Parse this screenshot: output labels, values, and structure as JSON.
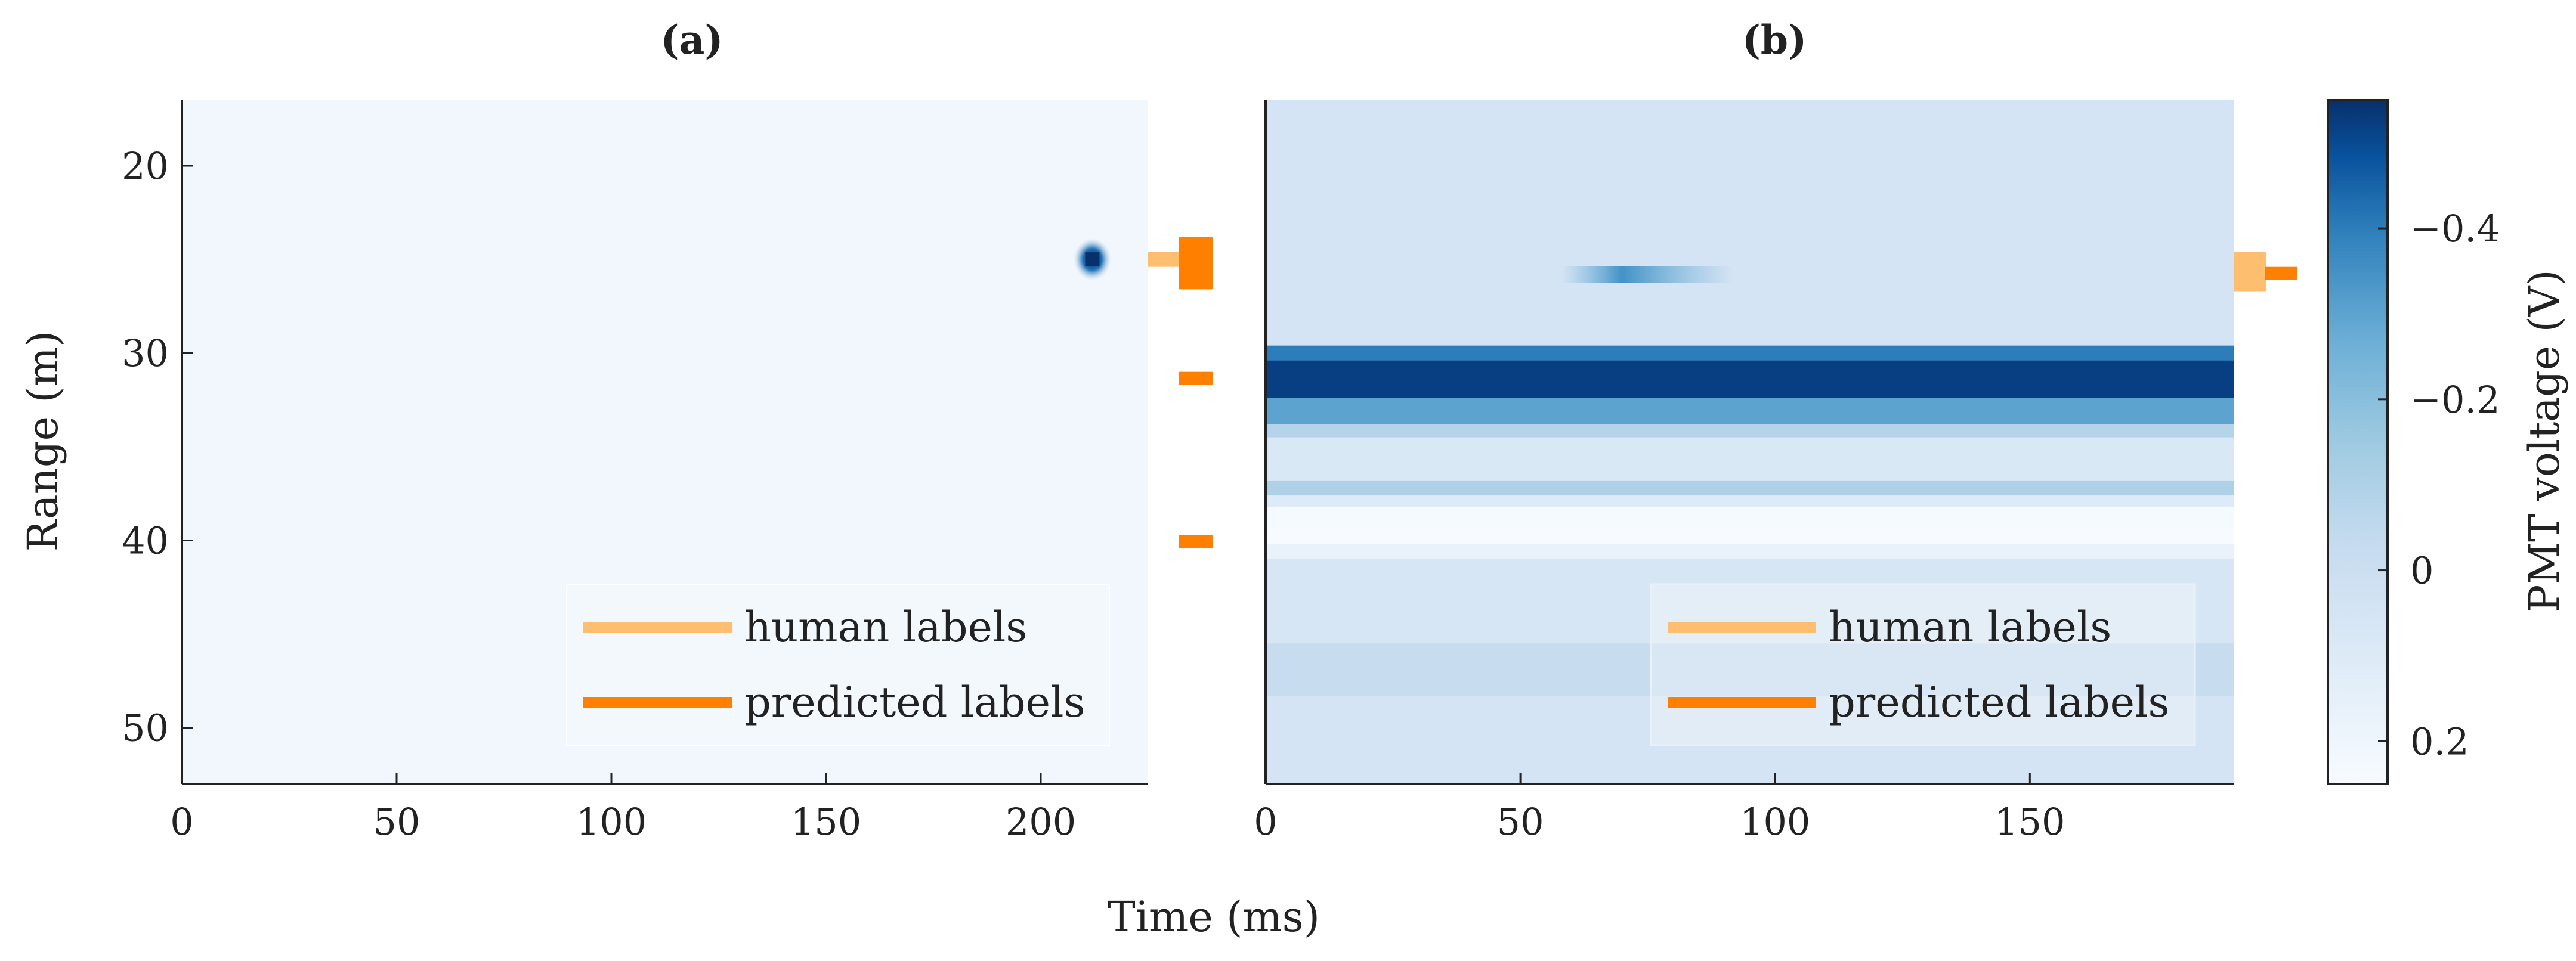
{
  "chart_data": [
    {
      "type": "heatmap",
      "title": "(a)",
      "xlabel": "",
      "ylabel": "Range (m)",
      "xlim": [
        0,
        225
      ],
      "ylim": [
        53,
        16.5
      ],
      "xticks": [
        "0",
        "50",
        "100",
        "150",
        "200"
      ],
      "yticks": [
        "20",
        "30",
        "40",
        "50"
      ],
      "xtick_values": [
        0,
        50,
        100,
        150,
        200
      ],
      "ytick_values": [
        20,
        30,
        40,
        50
      ],
      "background_color": "#f2f7fd",
      "hotspot": {
        "time_ms": 212,
        "range_m": 25
      },
      "label_track": {
        "human": [
          {
            "from_m": 24.6,
            "to_m": 25.4
          }
        ],
        "predicted": [
          {
            "from_m": 23.8,
            "to_m": 26.6
          },
          {
            "from_m": 31.0,
            "to_m": 31.7
          },
          {
            "from_m": 39.7,
            "to_m": 40.4
          }
        ]
      },
      "legend": {
        "position": "bottom-right",
        "entries": [
          "human labels",
          "predicted labels"
        ]
      }
    },
    {
      "type": "heatmap",
      "title": "(b)",
      "xlabel": "",
      "ylabel": "",
      "xlim": [
        0,
        190
      ],
      "ylim": [
        53,
        16.5
      ],
      "xticks": [
        "0",
        "50",
        "100",
        "150"
      ],
      "xtick_values": [
        0,
        50,
        100,
        150
      ],
      "bands": [
        {
          "from_m": 16.5,
          "to_m": 29.6,
          "value": 0.05
        },
        {
          "from_m": 29.6,
          "to_m": 30.4,
          "value": -0.4
        },
        {
          "from_m": 30.4,
          "to_m": 32.4,
          "value": -0.52
        },
        {
          "from_m": 32.4,
          "to_m": 33.8,
          "value": -0.3
        },
        {
          "from_m": 33.8,
          "to_m": 34.5,
          "value": -0.08
        },
        {
          "from_m": 34.5,
          "to_m": 36.8,
          "value": 0.08
        },
        {
          "from_m": 36.8,
          "to_m": 37.6,
          "value": -0.1
        },
        {
          "from_m": 37.6,
          "to_m": 38.2,
          "value": 0.1
        },
        {
          "from_m": 38.2,
          "to_m": 39.4,
          "value": 0.24
        },
        {
          "from_m": 39.4,
          "to_m": 40.2,
          "value": 0.28
        },
        {
          "from_m": 40.2,
          "to_m": 41.0,
          "value": 0.17
        },
        {
          "from_m": 41.0,
          "to_m": 45.5,
          "value": 0.06
        },
        {
          "from_m": 45.5,
          "to_m": 48.3,
          "value": -0.02
        },
        {
          "from_m": 48.3,
          "to_m": 53.0,
          "value": 0.05
        }
      ],
      "faint_streak": {
        "from_ms": 58,
        "to_ms": 92,
        "range_m": 25.8
      },
      "label_track": {
        "human": [
          {
            "from_m": 24.6,
            "to_m": 26.7
          }
        ],
        "predicted": [
          {
            "from_m": 25.4,
            "to_m": 26.1
          }
        ]
      },
      "legend": {
        "position": "bottom-right",
        "entries": [
          "human labels",
          "predicted labels"
        ]
      }
    }
  ],
  "shared": {
    "xlabel": "Time (ms)",
    "colorbar": {
      "label": "PMT voltage (V)",
      "range": [
        0.25,
        -0.55
      ],
      "ticks": [
        "−0.4",
        "−0.2",
        "0",
        "0.2"
      ],
      "tick_values": [
        -0.4,
        -0.2,
        0,
        0.2
      ]
    },
    "colors": {
      "human_labels": "#fdbf6f",
      "predicted_labels": "#ff7f00",
      "colormap_light": "#f7fbff",
      "colormap_dark": "#08306b"
    }
  }
}
